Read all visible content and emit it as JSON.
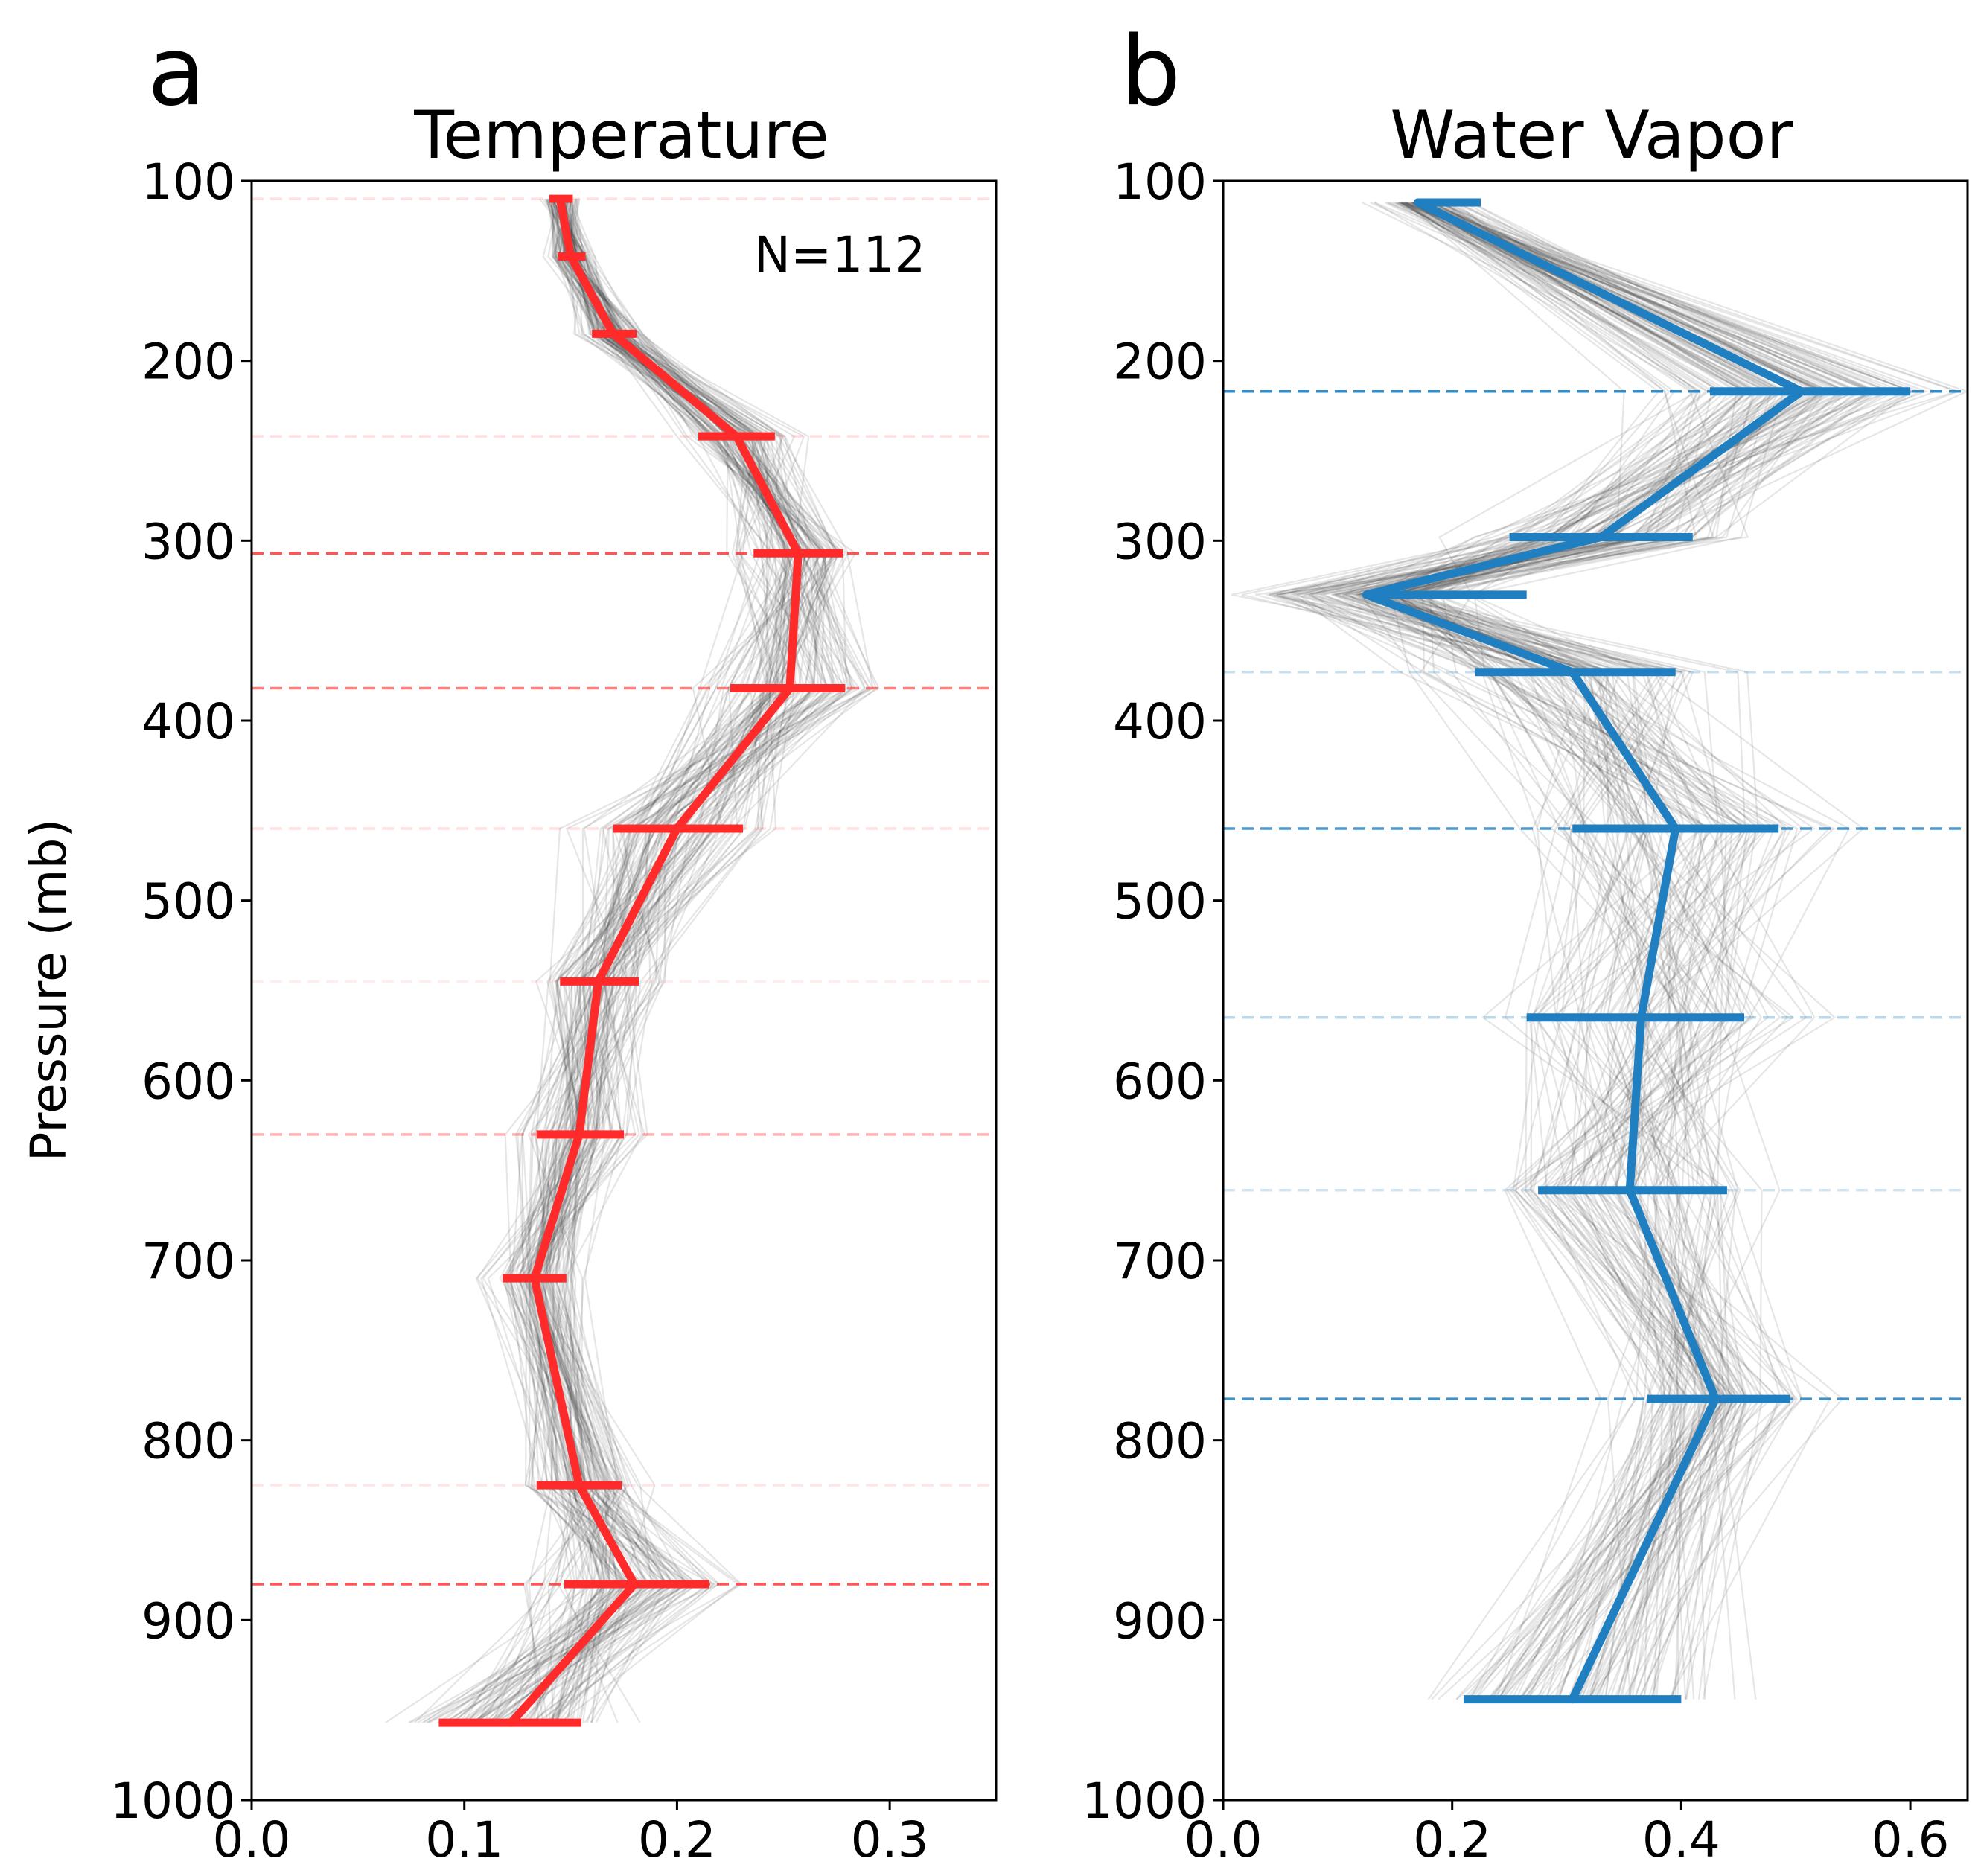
{
  "chart_data": [
    {
      "type": "line",
      "panel_label": "a",
      "title": "Temperature",
      "xlabel": "",
      "ylabel": "Pressure (mb)",
      "xlim": [
        0.0,
        0.35
      ],
      "ylim": [
        1000,
        100
      ],
      "y_inverted": true,
      "x_ticks": [
        0.0,
        0.1,
        0.2,
        0.3
      ],
      "x_tick_labels": [
        "0.0",
        "0.1",
        "0.2",
        "0.3"
      ],
      "y_ticks": [
        100,
        200,
        300,
        400,
        500,
        600,
        700,
        800,
        900,
        1000
      ],
      "y_tick_labels": [
        "100",
        "200",
        "300",
        "400",
        "500",
        "600",
        "700",
        "800",
        "900",
        "1000"
      ],
      "annotation": "N=112",
      "color": "#ff2a2a",
      "mean_profile": {
        "pressure": [
          110,
          142,
          185,
          242,
          307,
          382,
          460,
          545,
          630,
          710,
          825,
          880,
          957
        ],
        "value": [
          0.145,
          0.15,
          0.17,
          0.228,
          0.257,
          0.253,
          0.2,
          0.163,
          0.154,
          0.133,
          0.154,
          0.18,
          0.122
        ],
        "err_low": [
          0.14,
          0.144,
          0.16,
          0.21,
          0.236,
          0.225,
          0.17,
          0.145,
          0.134,
          0.118,
          0.134,
          0.147,
          0.088
        ],
        "err_high": [
          0.151,
          0.157,
          0.181,
          0.246,
          0.278,
          0.279,
          0.231,
          0.182,
          0.175,
          0.148,
          0.174,
          0.215,
          0.155
        ]
      },
      "reference_lines": [
        {
          "pressure": 110,
          "opacity": 0.15
        },
        {
          "pressure": 242,
          "opacity": 0.15
        },
        {
          "pressure": 307,
          "opacity": 0.8
        },
        {
          "pressure": 382,
          "opacity": 0.6
        },
        {
          "pressure": 460,
          "opacity": 0.15
        },
        {
          "pressure": 545,
          "opacity": 0.08
        },
        {
          "pressure": 630,
          "opacity": 0.35
        },
        {
          "pressure": 825,
          "opacity": 0.12
        },
        {
          "pressure": 880,
          "opacity": 0.8
        }
      ],
      "ensemble_count": 112
    },
    {
      "type": "line",
      "panel_label": "b",
      "title": "Water Vapor",
      "xlabel": "",
      "ylabel": "",
      "xlim": [
        0.0,
        0.65
      ],
      "ylim": [
        1000,
        100
      ],
      "y_inverted": true,
      "x_ticks": [
        0.0,
        0.2,
        0.4,
        0.6
      ],
      "x_tick_labels": [
        "0.0",
        "0.2",
        "0.4",
        "0.6"
      ],
      "y_ticks": [
        100,
        200,
        300,
        400,
        500,
        600,
        700,
        800,
        900,
        1000
      ],
      "y_tick_labels": [
        "100",
        "200",
        "300",
        "400",
        "500",
        "600",
        "700",
        "800",
        "900",
        "1000"
      ],
      "color": "#1f7fc0",
      "mean_profile": {
        "pressure": [
          112,
          217,
          298,
          330,
          373,
          460,
          565,
          661,
          777,
          944
        ],
        "value": [
          0.17,
          0.505,
          0.33,
          0.125,
          0.305,
          0.395,
          0.365,
          0.355,
          0.43,
          0.305
        ],
        "err_low": [
          0.17,
          0.425,
          0.25,
          0.125,
          0.22,
          0.305,
          0.265,
          0.275,
          0.37,
          0.21
        ],
        "err_high": [
          0.225,
          0.6,
          0.41,
          0.265,
          0.395,
          0.485,
          0.455,
          0.44,
          0.495,
          0.4
        ]
      },
      "reference_lines": [
        {
          "pressure": 217,
          "opacity": 0.9
        },
        {
          "pressure": 373,
          "opacity": 0.25
        },
        {
          "pressure": 460,
          "opacity": 0.8
        },
        {
          "pressure": 565,
          "opacity": 0.3
        },
        {
          "pressure": 661,
          "opacity": 0.2
        },
        {
          "pressure": 777,
          "opacity": 0.85
        }
      ],
      "ensemble_count": 112
    }
  ]
}
